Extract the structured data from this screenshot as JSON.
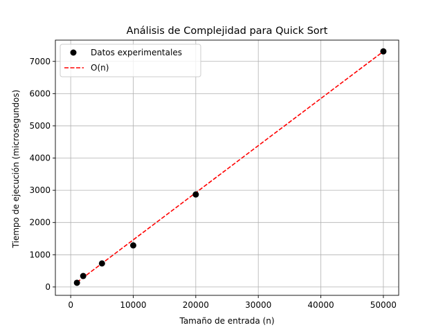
{
  "chart_data": {
    "type": "scatter",
    "title": "Análisis de Complejidad para Quick Sort",
    "xlabel": "Tamaño de entrada (n)",
    "ylabel": "Tiempo de ejecución (microsegundos)",
    "xlim": [
      -2450,
      52450
    ],
    "ylim": [
      -260,
      7660
    ],
    "xticks": [
      0,
      10000,
      20000,
      30000,
      40000,
      50000
    ],
    "yticks": [
      0,
      1000,
      2000,
      3000,
      4000,
      5000,
      6000,
      7000
    ],
    "grid": true,
    "legend_position": "upper-left",
    "series": [
      {
        "name": "Datos experimentales",
        "kind": "scatter",
        "color": "#000000",
        "x": [
          1000,
          2000,
          5000,
          10000,
          20000,
          50000
        ],
        "y": [
          130,
          340,
          730,
          1290,
          2870,
          7310
        ]
      },
      {
        "name": "O(n)",
        "kind": "line",
        "style": "dashed",
        "color": "#ff0000",
        "x": [
          1000,
          50000
        ],
        "y": [
          146,
          7310
        ]
      }
    ]
  }
}
